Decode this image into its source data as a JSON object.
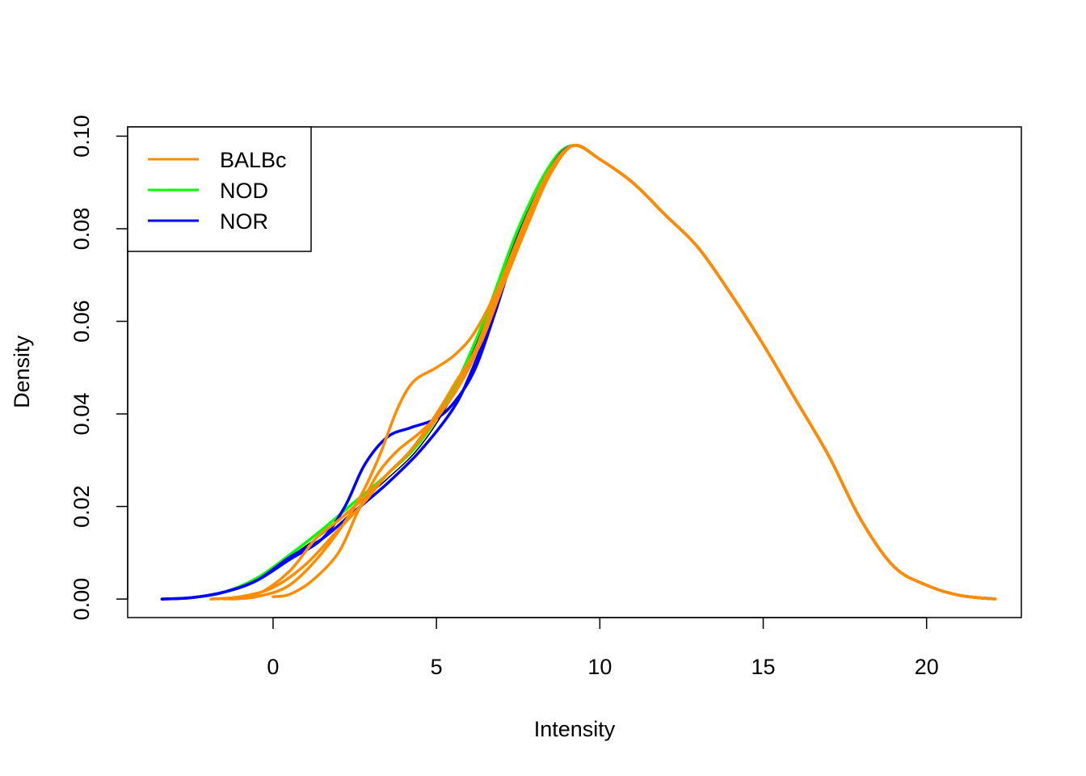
{
  "chart_data": {
    "type": "line",
    "title": "",
    "xlabel": "Intensity",
    "ylabel": "Density",
    "xlim": [
      -4.45,
      22.9
    ],
    "ylim": [
      -0.004,
      0.102
    ],
    "x_ticks": [
      0,
      5,
      10,
      15,
      20
    ],
    "x_tick_labels": [
      "0",
      "5",
      "10",
      "15",
      "20"
    ],
    "y_ticks": [
      0.0,
      0.02,
      0.04,
      0.06,
      0.08,
      0.1
    ],
    "y_tick_labels": [
      "0.00",
      "0.02",
      "0.04",
      "0.06",
      "0.08",
      "0.10"
    ],
    "grid": false,
    "legend": {
      "position": "top-left",
      "entries": [
        {
          "label": "BALBc",
          "color": "#FF8C00"
        },
        {
          "label": "NOD",
          "color": "#00FF00"
        },
        {
          "label": "NOR",
          "color": "#0000FF"
        }
      ]
    },
    "series": [
      {
        "color": "#000000",
        "points": [
          [
            -3.4,
            0.0
          ],
          [
            -2.5,
            0.0003
          ],
          [
            -1.5,
            0.0015
          ],
          [
            -0.5,
            0.004
          ],
          [
            0.5,
            0.009
          ],
          [
            1.5,
            0.014
          ],
          [
            2.5,
            0.02
          ],
          [
            3.5,
            0.026
          ],
          [
            4.5,
            0.033
          ],
          [
            5.5,
            0.044
          ],
          [
            6.5,
            0.06
          ],
          [
            7.5,
            0.079
          ],
          [
            8.5,
            0.094
          ],
          [
            9.2,
            0.098
          ],
          [
            10.0,
            0.095
          ],
          [
            11.0,
            0.09
          ],
          [
            12.0,
            0.083
          ],
          [
            13.0,
            0.076
          ],
          [
            14.0,
            0.066
          ],
          [
            15.0,
            0.055
          ],
          [
            16.0,
            0.043
          ],
          [
            17.0,
            0.031
          ],
          [
            18.0,
            0.017
          ],
          [
            19.0,
            0.007
          ],
          [
            20.0,
            0.003
          ],
          [
            21.0,
            0.0008
          ],
          [
            22.1,
            0.0
          ]
        ]
      },
      {
        "color": "#00FF00",
        "points": [
          [
            -3.4,
            0.0
          ],
          [
            -2.5,
            0.0003
          ],
          [
            -1.5,
            0.0015
          ],
          [
            -0.5,
            0.0045
          ],
          [
            0.5,
            0.0095
          ],
          [
            1.5,
            0.015
          ],
          [
            2.5,
            0.021
          ],
          [
            3.5,
            0.027
          ],
          [
            4.5,
            0.034
          ],
          [
            5.5,
            0.045
          ],
          [
            6.5,
            0.061
          ],
          [
            7.5,
            0.08
          ],
          [
            8.5,
            0.094
          ],
          [
            9.2,
            0.098
          ],
          [
            10.0,
            0.095
          ],
          [
            11.0,
            0.09
          ],
          [
            12.0,
            0.083
          ],
          [
            13.0,
            0.076
          ],
          [
            14.0,
            0.066
          ],
          [
            15.0,
            0.055
          ],
          [
            16.0,
            0.043
          ],
          [
            17.0,
            0.031
          ],
          [
            18.0,
            0.017
          ],
          [
            19.0,
            0.007
          ],
          [
            20.0,
            0.003
          ],
          [
            21.0,
            0.0008
          ],
          [
            22.1,
            0.0
          ]
        ]
      },
      {
        "color": "#0000FF",
        "points": [
          [
            -3.4,
            0.0
          ],
          [
            -2.5,
            0.0003
          ],
          [
            -1.5,
            0.0015
          ],
          [
            -0.5,
            0.004
          ],
          [
            0.5,
            0.009
          ],
          [
            1.5,
            0.013
          ],
          [
            2.5,
            0.019
          ],
          [
            3.5,
            0.025
          ],
          [
            4.5,
            0.032
          ],
          [
            5.5,
            0.041
          ],
          [
            6.0,
            0.048
          ],
          [
            6.5,
            0.057
          ],
          [
            7.0,
            0.068
          ],
          [
            7.5,
            0.078
          ],
          [
            8.5,
            0.093
          ],
          [
            9.2,
            0.098
          ],
          [
            10.0,
            0.095
          ],
          [
            11.0,
            0.09
          ],
          [
            12.0,
            0.083
          ],
          [
            13.0,
            0.076
          ],
          [
            14.0,
            0.066
          ],
          [
            15.0,
            0.055
          ],
          [
            16.0,
            0.043
          ],
          [
            17.0,
            0.031
          ],
          [
            18.0,
            0.017
          ],
          [
            19.0,
            0.007
          ],
          [
            20.0,
            0.003
          ],
          [
            21.0,
            0.0008
          ],
          [
            22.1,
            0.0
          ]
        ]
      },
      {
        "color": "#0000FF",
        "points": [
          [
            -3.4,
            0.0
          ],
          [
            -2.5,
            0.0003
          ],
          [
            -1.5,
            0.0015
          ],
          [
            -0.5,
            0.004
          ],
          [
            0.5,
            0.0085
          ],
          [
            1.5,
            0.013
          ],
          [
            2.2,
            0.02
          ],
          [
            2.8,
            0.029
          ],
          [
            3.5,
            0.035
          ],
          [
            4.2,
            0.037
          ],
          [
            5.0,
            0.039
          ],
          [
            5.6,
            0.043
          ],
          [
            6.2,
            0.05
          ],
          [
            6.8,
            0.062
          ],
          [
            7.5,
            0.077
          ],
          [
            8.5,
            0.093
          ],
          [
            9.2,
            0.098
          ],
          [
            10.0,
            0.095
          ],
          [
            11.0,
            0.09
          ],
          [
            12.0,
            0.083
          ],
          [
            13.0,
            0.076
          ],
          [
            14.0,
            0.066
          ],
          [
            15.0,
            0.055
          ],
          [
            16.0,
            0.043
          ],
          [
            17.0,
            0.031
          ],
          [
            18.0,
            0.017
          ],
          [
            19.0,
            0.007
          ],
          [
            20.0,
            0.003
          ],
          [
            21.0,
            0.0008
          ],
          [
            22.1,
            0.0
          ]
        ]
      },
      {
        "color": "#FF8C00",
        "points": [
          [
            -1.9,
            0.0
          ],
          [
            -1.0,
            0.0005
          ],
          [
            0.0,
            0.0025
          ],
          [
            1.0,
            0.0075
          ],
          [
            2.0,
            0.015
          ],
          [
            2.8,
            0.021
          ],
          [
            3.5,
            0.027
          ],
          [
            4.2,
            0.032
          ],
          [
            5.0,
            0.04
          ],
          [
            5.6,
            0.047
          ],
          [
            6.2,
            0.054
          ],
          [
            7.0,
            0.069
          ],
          [
            7.8,
            0.083
          ],
          [
            8.5,
            0.093
          ],
          [
            9.2,
            0.098
          ],
          [
            10.0,
            0.095
          ],
          [
            11.0,
            0.09
          ],
          [
            12.0,
            0.083
          ],
          [
            13.0,
            0.076
          ],
          [
            14.0,
            0.066
          ],
          [
            15.0,
            0.055
          ],
          [
            16.0,
            0.043
          ],
          [
            17.0,
            0.031
          ],
          [
            18.0,
            0.017
          ],
          [
            19.0,
            0.007
          ],
          [
            20.0,
            0.003
          ],
          [
            21.0,
            0.0008
          ],
          [
            22.1,
            0.0
          ]
        ]
      },
      {
        "color": "#FF8C00",
        "points": [
          [
            -1.3,
            0.0
          ],
          [
            -0.5,
            0.0005
          ],
          [
            0.5,
            0.003
          ],
          [
            1.5,
            0.01
          ],
          [
            2.5,
            0.02
          ],
          [
            3.2,
            0.03
          ],
          [
            3.8,
            0.041
          ],
          [
            4.3,
            0.047
          ],
          [
            5.0,
            0.05
          ],
          [
            5.6,
            0.053
          ],
          [
            6.2,
            0.058
          ],
          [
            7.0,
            0.069
          ],
          [
            7.8,
            0.083
          ],
          [
            8.5,
            0.093
          ],
          [
            9.2,
            0.098
          ],
          [
            10.0,
            0.095
          ],
          [
            11.0,
            0.09
          ],
          [
            12.0,
            0.083
          ],
          [
            13.0,
            0.076
          ],
          [
            14.0,
            0.066
          ],
          [
            15.0,
            0.055
          ],
          [
            16.0,
            0.043
          ],
          [
            17.0,
            0.031
          ],
          [
            18.0,
            0.017
          ],
          [
            19.0,
            0.007
          ],
          [
            20.0,
            0.003
          ],
          [
            21.0,
            0.0008
          ],
          [
            22.1,
            0.0
          ]
        ]
      },
      {
        "color": "#FF8C00",
        "points": [
          [
            0.0,
            0.0005
          ],
          [
            0.5,
            0.001
          ],
          [
            1.2,
            0.004
          ],
          [
            2.0,
            0.01
          ],
          [
            2.6,
            0.019
          ],
          [
            3.2,
            0.027
          ],
          [
            3.8,
            0.032
          ],
          [
            4.5,
            0.036
          ],
          [
            5.2,
            0.041
          ],
          [
            5.8,
            0.048
          ],
          [
            6.4,
            0.056
          ],
          [
            7.0,
            0.067
          ],
          [
            7.8,
            0.081
          ],
          [
            8.5,
            0.092
          ],
          [
            9.2,
            0.098
          ],
          [
            10.0,
            0.095
          ],
          [
            11.0,
            0.09
          ],
          [
            12.0,
            0.083
          ],
          [
            13.0,
            0.076
          ],
          [
            14.0,
            0.066
          ],
          [
            15.0,
            0.055
          ],
          [
            16.0,
            0.043
          ],
          [
            17.0,
            0.031
          ],
          [
            18.0,
            0.017
          ],
          [
            19.0,
            0.007
          ],
          [
            20.0,
            0.003
          ],
          [
            21.0,
            0.0008
          ],
          [
            22.1,
            0.0
          ]
        ]
      },
      {
        "color": "#FF8C00",
        "points": [
          [
            -1.5,
            0.0
          ],
          [
            -0.5,
            0.001
          ],
          [
            0.5,
            0.006
          ],
          [
            1.3,
            0.013
          ],
          [
            2.0,
            0.017
          ],
          [
            2.8,
            0.022
          ],
          [
            3.5,
            0.027
          ],
          [
            4.2,
            0.032
          ],
          [
            5.0,
            0.039
          ],
          [
            5.6,
            0.045
          ],
          [
            6.2,
            0.053
          ],
          [
            7.0,
            0.068
          ],
          [
            7.8,
            0.082
          ],
          [
            8.5,
            0.093
          ],
          [
            9.2,
            0.098
          ],
          [
            10.0,
            0.095
          ],
          [
            11.0,
            0.09
          ],
          [
            12.0,
            0.083
          ],
          [
            13.0,
            0.076
          ],
          [
            14.0,
            0.066
          ],
          [
            15.0,
            0.055
          ],
          [
            16.0,
            0.043
          ],
          [
            17.0,
            0.031
          ],
          [
            18.0,
            0.017
          ],
          [
            19.0,
            0.007
          ],
          [
            20.0,
            0.003
          ],
          [
            21.0,
            0.0008
          ],
          [
            22.1,
            0.0
          ]
        ]
      }
    ]
  }
}
